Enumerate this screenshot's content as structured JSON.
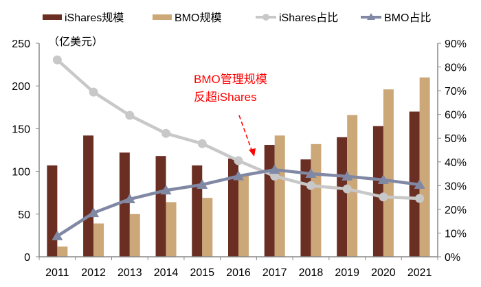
{
  "chart_data": {
    "type": "bar",
    "categories": [
      "2011",
      "2012",
      "2013",
      "2014",
      "2015",
      "2016",
      "2017",
      "2018",
      "2019",
      "2020",
      "2021"
    ],
    "y_unit_label": "（亿美元）",
    "ylim": [
      0,
      250
    ],
    "yticks": [
      0,
      50,
      100,
      150,
      200,
      250
    ],
    "y2lim": [
      0,
      90
    ],
    "y2ticks": [
      "0%",
      "10%",
      "20%",
      "30%",
      "40%",
      "50%",
      "60%",
      "70%",
      "80%",
      "90%"
    ],
    "grid": false,
    "legend_position": "top",
    "series": [
      {
        "name": "iShares规模",
        "type": "bar",
        "axis": "left",
        "color": "#6B2E22",
        "values": [
          107,
          142,
          122,
          118,
          107,
          115,
          131,
          114,
          140,
          153,
          170
        ]
      },
      {
        "name": "BMO规模",
        "type": "bar",
        "axis": "right-of-pair",
        "color": "#CCA878",
        "values": [
          12,
          39,
          50,
          64,
          69,
          96,
          142,
          132,
          166,
          196,
          210
        ]
      },
      {
        "name": "iShares占比",
        "type": "line",
        "marker": "circle",
        "axis": "right",
        "color": "#C8C8C8",
        "values": [
          83,
          69.4,
          59.6,
          52,
          47.7,
          40.5,
          34,
          30,
          28.6,
          25.2,
          24.6
        ]
      },
      {
        "name": "BMO占比",
        "type": "line",
        "marker": "triangle",
        "axis": "right",
        "color": "#8088A4",
        "values": [
          8.7,
          18.5,
          24.3,
          28,
          30.4,
          34,
          36.7,
          35,
          33.9,
          32.4,
          30.4
        ]
      }
    ],
    "annotation": {
      "lines": [
        "BMO管理规模",
        "反超iShares"
      ],
      "color": "#FF0000",
      "points_to": "2017"
    }
  }
}
